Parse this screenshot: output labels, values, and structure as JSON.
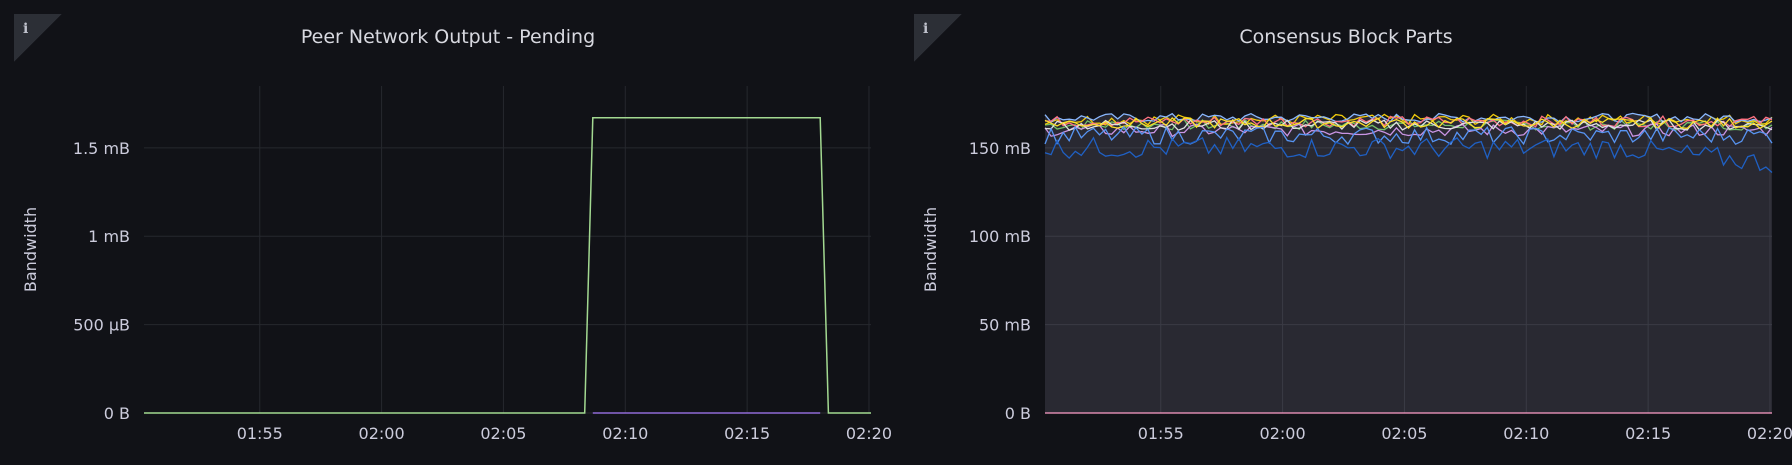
{
  "panels": [
    {
      "title": "Peer Network Output - Pending",
      "info_icon": "i"
    },
    {
      "title": "Consensus Block Parts",
      "info_icon": "i"
    }
  ],
  "chart_data": [
    {
      "type": "line",
      "title": "Peer Network Output - Pending",
      "ylabel": "Bandwidth",
      "xlabel": "",
      "x_ticks": [
        "01:55",
        "02:00",
        "02:05",
        "02:10",
        "02:15",
        "02:20"
      ],
      "y_ticks": [
        "0 B",
        "500 µB",
        "1 mB",
        "1.5 mB"
      ],
      "ylim": [
        0,
        0.00185
      ],
      "xlim": [
        "01:50:15",
        "02:20:05"
      ],
      "grid": true,
      "series": [
        {
          "color": "#a3d991",
          "x": [
            "01:50:15",
            "02:08:20",
            "02:08:40",
            "02:18:00",
            "02:18:20",
            "02:20:05"
          ],
          "values": [
            0,
            0,
            0.00167,
            0.00167,
            0,
            0
          ]
        },
        {
          "color": "#8f6bd6",
          "x": [
            "02:08:40",
            "02:18:00"
          ],
          "values": [
            0,
            0
          ]
        }
      ]
    },
    {
      "type": "area",
      "title": "Consensus Block Parts",
      "ylabel": "Bandwidth",
      "xlabel": "",
      "x_ticks": [
        "01:55",
        "02:00",
        "02:05",
        "02:10",
        "02:15",
        "02:20"
      ],
      "y_ticks": [
        "0 B",
        "50 mB",
        "100 mB",
        "150 mB"
      ],
      "ylim": [
        0,
        185
      ],
      "xlim": [
        "01:50:15",
        "02:20:05"
      ],
      "grid": true,
      "series": [
        {
          "color": "#73bf69",
          "base": 163,
          "amp": 3
        },
        {
          "color": "#f2cc0c",
          "base": 166,
          "amp": 3
        },
        {
          "color": "#8ab8ff",
          "base": 167,
          "amp": 2.5
        },
        {
          "color": "#ff7383",
          "base": 165,
          "amp": 3
        },
        {
          "color": "#ca95e5",
          "base": 160,
          "amp": 3.5
        },
        {
          "color": "#e0e0e0",
          "base": 163,
          "amp": 3
        },
        {
          "color": "#fade2a",
          "base": 164,
          "amp": 3
        },
        {
          "color": "#5794f2",
          "base": 157,
          "amp": 5
        },
        {
          "color": "#1f60c4",
          "base": 150,
          "amp": 6
        },
        {
          "color": "#ff9ec9",
          "base": 0,
          "amp": 0
        }
      ]
    }
  ]
}
